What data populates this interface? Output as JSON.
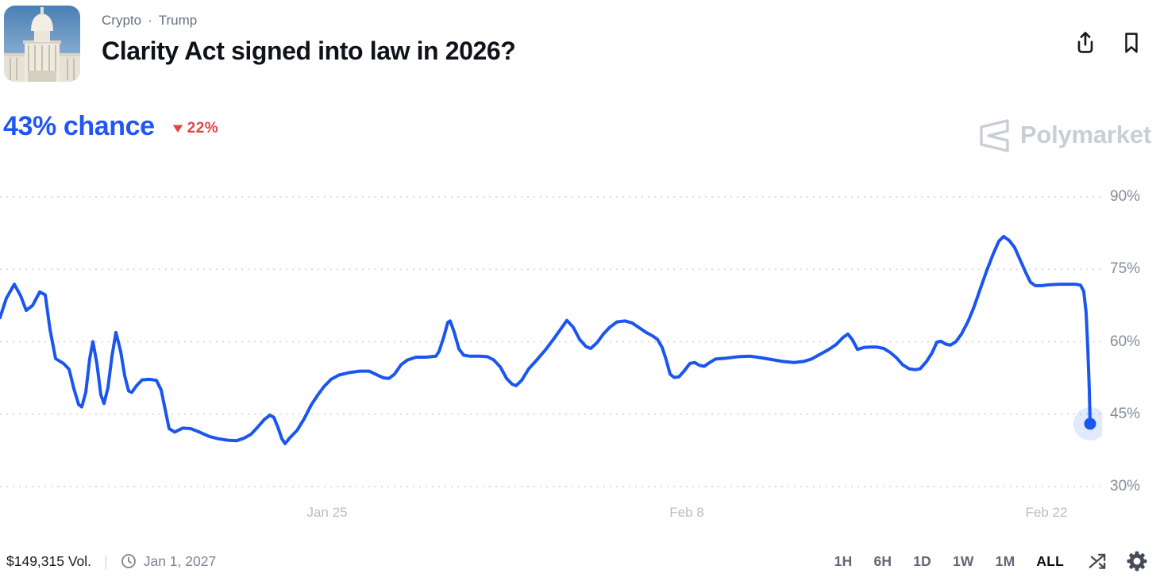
{
  "header": {
    "breadcrumbs": [
      "Crypto",
      "Trump"
    ],
    "breadcrumb_separator": "·",
    "title": "Clarity Act signed into law in 2026?",
    "thumbnail_alt": "US Capitol building photo"
  },
  "price": {
    "chance": "43% chance",
    "change_direction": "down",
    "change_value": "22%"
  },
  "watermark": {
    "brand": "Polymarket"
  },
  "chart_data": {
    "type": "line",
    "title": "Clarity Act signed into law in 2026? — chance over time",
    "ylabel": "chance",
    "legend": "none",
    "grid": "horizontal-dotted",
    "y_ticks": [
      {
        "label": "90%",
        "value": 90
      },
      {
        "label": "75%",
        "value": 75
      },
      {
        "label": "60%",
        "value": 60
      },
      {
        "label": "45%",
        "value": 45
      },
      {
        "label": "30%",
        "value": 30
      }
    ],
    "x_ticks": [
      {
        "label": "Jan 25",
        "x": 412
      },
      {
        "label": "Feb 8",
        "x": 865
      },
      {
        "label": "Feb 22",
        "x": 1318
      }
    ],
    "x_domain": [
      0,
      1388
    ],
    "y_domain": [
      28,
      93
    ],
    "line_color": "#1b55f0",
    "endpoint": {
      "x": 1373,
      "value": 43
    },
    "series": [
      {
        "name": "chance_pct",
        "points": [
          [
            0,
            65.0
          ],
          [
            8,
            69.0
          ],
          [
            18,
            71.9
          ],
          [
            26,
            69.5
          ],
          [
            33,
            66.5
          ],
          [
            41,
            67.5
          ],
          [
            50,
            70.3
          ],
          [
            57,
            69.7
          ],
          [
            63,
            62.5
          ],
          [
            70,
            56.5
          ],
          [
            80,
            55.5
          ],
          [
            87,
            54.3
          ],
          [
            93,
            50.3
          ],
          [
            99,
            47.0
          ],
          [
            103,
            46.5
          ],
          [
            108,
            49.5
          ],
          [
            113,
            56.5
          ],
          [
            117,
            60.0
          ],
          [
            122,
            55.5
          ],
          [
            127,
            49.0
          ],
          [
            131,
            47.2
          ],
          [
            136,
            50.5
          ],
          [
            141,
            57.0
          ],
          [
            146,
            61.9
          ],
          [
            152,
            58.0
          ],
          [
            157,
            53.0
          ],
          [
            162,
            49.8
          ],
          [
            166,
            49.5
          ],
          [
            172,
            50.9
          ],
          [
            179,
            52.1
          ],
          [
            188,
            52.2
          ],
          [
            197,
            52.0
          ],
          [
            203,
            50.0
          ],
          [
            208,
            46.0
          ],
          [
            213,
            42.0
          ],
          [
            220,
            41.3
          ],
          [
            230,
            42.1
          ],
          [
            240,
            42.0
          ],
          [
            251,
            41.3
          ],
          [
            263,
            40.4
          ],
          [
            275,
            39.9
          ],
          [
            287,
            39.6
          ],
          [
            298,
            39.5
          ],
          [
            307,
            40.0
          ],
          [
            316,
            40.8
          ],
          [
            325,
            42.4
          ],
          [
            333,
            43.9
          ],
          [
            340,
            44.8
          ],
          [
            345,
            44.3
          ],
          [
            350,
            42.3
          ],
          [
            355,
            39.9
          ],
          [
            359,
            38.9
          ],
          [
            365,
            40.1
          ],
          [
            374,
            41.6
          ],
          [
            383,
            44.0
          ],
          [
            392,
            46.9
          ],
          [
            400,
            48.9
          ],
          [
            408,
            50.7
          ],
          [
            417,
            52.2
          ],
          [
            427,
            53.1
          ],
          [
            440,
            53.6
          ],
          [
            453,
            53.9
          ],
          [
            465,
            53.9
          ],
          [
            474,
            53.2
          ],
          [
            483,
            52.5
          ],
          [
            490,
            52.4
          ],
          [
            497,
            53.3
          ],
          [
            505,
            55.2
          ],
          [
            513,
            56.2
          ],
          [
            524,
            56.8
          ],
          [
            537,
            56.8
          ],
          [
            549,
            57.0
          ],
          [
            553,
            58.0
          ],
          [
            559,
            61.0
          ],
          [
            564,
            64.0
          ],
          [
            567,
            64.3
          ],
          [
            572,
            62.0
          ],
          [
            578,
            58.5
          ],
          [
            584,
            57.2
          ],
          [
            592,
            57.0
          ],
          [
            604,
            57.0
          ],
          [
            614,
            56.9
          ],
          [
            622,
            56.2
          ],
          [
            630,
            54.8
          ],
          [
            638,
            52.4
          ],
          [
            645,
            51.2
          ],
          [
            650,
            50.9
          ],
          [
            657,
            52.0
          ],
          [
            666,
            54.4
          ],
          [
            676,
            56.2
          ],
          [
            687,
            58.3
          ],
          [
            698,
            60.7
          ],
          [
            707,
            62.8
          ],
          [
            714,
            64.4
          ],
          [
            722,
            63.0
          ],
          [
            730,
            60.5
          ],
          [
            738,
            59.0
          ],
          [
            744,
            58.6
          ],
          [
            752,
            59.8
          ],
          [
            760,
            61.6
          ],
          [
            768,
            63.0
          ],
          [
            777,
            64.1
          ],
          [
            787,
            64.3
          ],
          [
            796,
            63.9
          ],
          [
            805,
            62.9
          ],
          [
            814,
            61.9
          ],
          [
            822,
            61.2
          ],
          [
            828,
            60.5
          ],
          [
            834,
            58.8
          ],
          [
            839,
            56.3
          ],
          [
            844,
            53.3
          ],
          [
            849,
            52.6
          ],
          [
            855,
            52.7
          ],
          [
            862,
            54.0
          ],
          [
            869,
            55.5
          ],
          [
            875,
            55.7
          ],
          [
            881,
            55.1
          ],
          [
            887,
            54.9
          ],
          [
            893,
            55.6
          ],
          [
            901,
            56.4
          ],
          [
            915,
            56.6
          ],
          [
            930,
            56.9
          ],
          [
            945,
            57.0
          ],
          [
            958,
            56.7
          ],
          [
            972,
            56.3
          ],
          [
            986,
            55.9
          ],
          [
            1000,
            55.7
          ],
          [
            1012,
            55.9
          ],
          [
            1022,
            56.4
          ],
          [
            1032,
            57.3
          ],
          [
            1043,
            58.3
          ],
          [
            1053,
            59.4
          ],
          [
            1062,
            60.9
          ],
          [
            1068,
            61.6
          ],
          [
            1074,
            60.3
          ],
          [
            1080,
            58.4
          ],
          [
            1088,
            58.8
          ],
          [
            1096,
            58.9
          ],
          [
            1104,
            58.9
          ],
          [
            1113,
            58.6
          ],
          [
            1121,
            57.8
          ],
          [
            1129,
            56.7
          ],
          [
            1137,
            55.2
          ],
          [
            1145,
            54.4
          ],
          [
            1153,
            54.2
          ],
          [
            1159,
            54.4
          ],
          [
            1167,
            55.9
          ],
          [
            1174,
            57.7
          ],
          [
            1180,
            59.9
          ],
          [
            1185,
            60.1
          ],
          [
            1191,
            59.5
          ],
          [
            1197,
            59.3
          ],
          [
            1204,
            60.0
          ],
          [
            1211,
            61.6
          ],
          [
            1219,
            64.1
          ],
          [
            1227,
            67.3
          ],
          [
            1235,
            71.1
          ],
          [
            1243,
            74.8
          ],
          [
            1251,
            78.2
          ],
          [
            1258,
            80.8
          ],
          [
            1264,
            81.8
          ],
          [
            1271,
            81.0
          ],
          [
            1278,
            79.5
          ],
          [
            1285,
            76.9
          ],
          [
            1292,
            74.3
          ],
          [
            1298,
            72.3
          ],
          [
            1304,
            71.6
          ],
          [
            1312,
            71.6
          ],
          [
            1322,
            71.8
          ],
          [
            1334,
            71.9
          ],
          [
            1345,
            71.9
          ],
          [
            1355,
            71.9
          ],
          [
            1361,
            71.7
          ],
          [
            1365,
            70.4
          ],
          [
            1368,
            66.0
          ],
          [
            1370,
            59.0
          ],
          [
            1372,
            50.0
          ],
          [
            1373,
            43.0
          ]
        ]
      }
    ]
  },
  "footer": {
    "volume": "$149,315 Vol.",
    "separator": "|",
    "end_date": "Jan 1, 2027",
    "timeframes": [
      "1H",
      "6H",
      "1D",
      "1W",
      "1M",
      "ALL"
    ],
    "selected_timeframe": "ALL"
  },
  "colors": {
    "chance_blue": "#2156f3",
    "line_blue": "#1b55f0",
    "change_red": "#df4646",
    "title_dark": "#0e1319",
    "breadcrumb_gray": "#66707f",
    "y_axis_gray": "#868e9b",
    "x_axis_gray": "#b6bdc8",
    "watermark_gray": "#c9cdd6",
    "gridline_gray": "#d9dce2",
    "footer_gray": "#7b8494",
    "timeframe_gray": "#5f6774",
    "icon_dark": "#454c58"
  }
}
